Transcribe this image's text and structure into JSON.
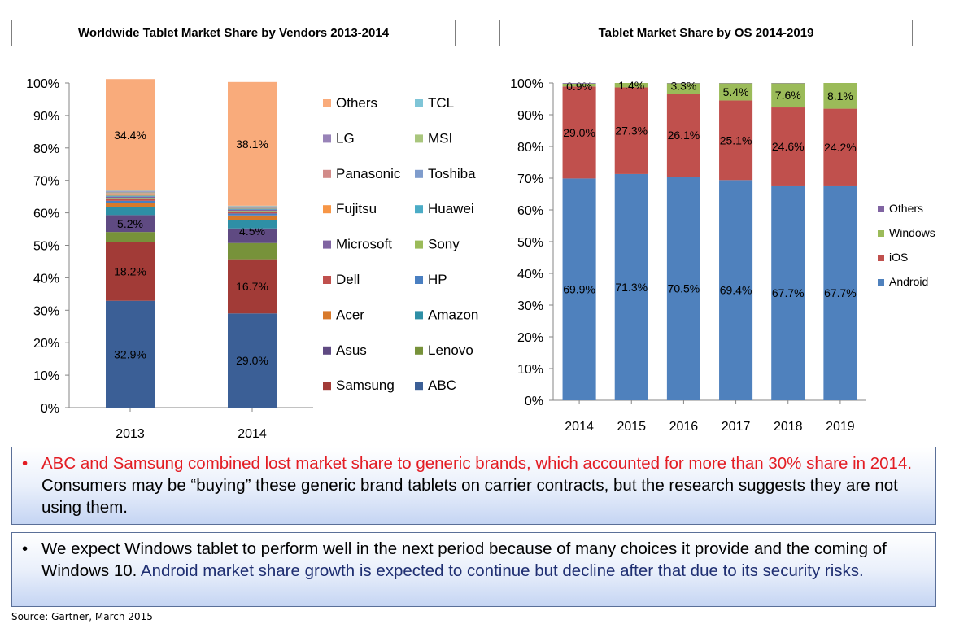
{
  "chart_data": [
    {
      "type": "bar",
      "stacked": true,
      "title": "Worldwide Tablet Market Share by Vendors 2013-2014",
      "categories": [
        "2013",
        "2014"
      ],
      "ylim": [
        0,
        100
      ],
      "yticks": [
        "0%",
        "10%",
        "20%",
        "30%",
        "40%",
        "50%",
        "60%",
        "70%",
        "80%",
        "90%",
        "100%"
      ],
      "grid": false,
      "legend_position": "right",
      "series": [
        {
          "name": "ABC",
          "color": "#3b5f96",
          "values": [
            32.9,
            29.0
          ],
          "labels": [
            "32.9%",
            "29.0%"
          ]
        },
        {
          "name": "Samsung",
          "color": "#a23b37",
          "values": [
            18.2,
            16.7
          ],
          "labels": [
            "18.2%",
            "16.7%"
          ]
        },
        {
          "name": "Lenovo",
          "color": "#77923a",
          "values": [
            3.0,
            5.0
          ],
          "labels": [
            "",
            ""
          ]
        },
        {
          "name": "Asus",
          "color": "#5f4a82",
          "values": [
            5.2,
            4.5
          ],
          "labels": [
            "5.2%",
            "4.5%"
          ]
        },
        {
          "name": "Amazon",
          "color": "#2e8fa6",
          "values": [
            2.5,
            2.6
          ],
          "labels": [
            "",
            ""
          ]
        },
        {
          "name": "Acer",
          "color": "#d8792b",
          "values": [
            1.2,
            1.4
          ],
          "labels": [
            "",
            ""
          ]
        },
        {
          "name": "HP",
          "color": "#4a7fc1",
          "values": [
            0.7,
            0.6
          ],
          "labels": [
            "",
            ""
          ]
        },
        {
          "name": "Dell",
          "color": "#c0504d",
          "values": [
            0.5,
            0.5
          ],
          "labels": [
            "",
            ""
          ]
        },
        {
          "name": "Sony",
          "color": "#9bbb59",
          "values": [
            0.4,
            0.3
          ],
          "labels": [
            "",
            ""
          ]
        },
        {
          "name": "Microsoft",
          "color": "#8064a2",
          "values": [
            0.4,
            0.4
          ],
          "labels": [
            "",
            ""
          ]
        },
        {
          "name": "Huawei",
          "color": "#4bacc6",
          "values": [
            0.3,
            0.3
          ],
          "labels": [
            "",
            ""
          ]
        },
        {
          "name": "Fujitsu",
          "color": "#f79646",
          "values": [
            0.3,
            0.2
          ],
          "labels": [
            "",
            ""
          ]
        },
        {
          "name": "Toshiba",
          "color": "#7f9ccc",
          "values": [
            0.3,
            0.2
          ],
          "labels": [
            "",
            ""
          ]
        },
        {
          "name": "Panasonic",
          "color": "#d28b89",
          "values": [
            0.2,
            0.2
          ],
          "labels": [
            "",
            ""
          ]
        },
        {
          "name": "MSI",
          "color": "#a9c67d",
          "values": [
            0.2,
            0.1
          ],
          "labels": [
            "",
            ""
          ]
        },
        {
          "name": "LG",
          "color": "#9883b8",
          "values": [
            0.3,
            0.1
          ],
          "labels": [
            "",
            ""
          ]
        },
        {
          "name": "TCL",
          "color": "#7fc5d7",
          "values": [
            0.2,
            0.1
          ],
          "labels": [
            "",
            ""
          ]
        },
        {
          "name": "Others",
          "color": "#f9ab7b",
          "values": [
            34.4,
            38.1
          ],
          "labels": [
            "34.4%",
            "38.1%"
          ]
        }
      ],
      "legend_order": [
        "Others",
        "TCL",
        "LG",
        "MSI",
        "Panasonic",
        "Toshiba",
        "Fujitsu",
        "Huawei",
        "Microsoft",
        "Sony",
        "Dell",
        "HP",
        "Acer",
        "Amazon",
        "Asus",
        "Lenovo",
        "Samsung",
        "ABC"
      ]
    },
    {
      "type": "bar",
      "stacked": true,
      "title": "Tablet Market Share by OS 2014-2019",
      "categories": [
        "2014",
        "2015",
        "2016",
        "2017",
        "2018",
        "2019"
      ],
      "ylim": [
        0,
        100
      ],
      "yticks": [
        "0%",
        "10%",
        "20%",
        "30%",
        "40%",
        "50%",
        "60%",
        "70%",
        "80%",
        "90%",
        "100%"
      ],
      "grid": false,
      "legend_position": "right",
      "series": [
        {
          "name": "Android",
          "color": "#4f81bd",
          "values": [
            69.9,
            71.3,
            70.5,
            69.4,
            67.7,
            67.7
          ],
          "labels": [
            "69.9%",
            "71.3%",
            "70.5%",
            "69.4%",
            "67.7%",
            "67.7%"
          ]
        },
        {
          "name": "iOS",
          "color": "#c0504d",
          "values": [
            29.0,
            27.3,
            26.1,
            25.1,
            24.6,
            24.2
          ],
          "labels": [
            "29.0%",
            "27.3%",
            "26.1%",
            "25.1%",
            "24.6%",
            "24.2%"
          ]
        },
        {
          "name": "Windows",
          "color": "#9bbb59",
          "values": [
            0.9,
            1.4,
            3.3,
            5.4,
            7.6,
            8.1
          ],
          "labels": [
            "0.9%",
            "1.4%",
            "3.3%",
            "5.4%",
            "7.6%",
            "8.1%"
          ]
        },
        {
          "name": "Others",
          "color": "#8064a2",
          "values": [
            0.2,
            0.0,
            0.1,
            0.1,
            0.1,
            0.0
          ],
          "labels": [
            "",
            "",
            "",
            "",
            "",
            ""
          ]
        }
      ],
      "legend_order": [
        "Others",
        "Windows",
        "iOS",
        "Android"
      ]
    }
  ],
  "notes": [
    {
      "bullet": "•",
      "highlight": "ABC and Samsung combined lost market share to generic brands, which accounted for more than 30% share in 2014.",
      "rest": " Consumers may be “buying” these generic brand tablets on carrier contracts, but the research suggests they are not using them."
    },
    {
      "bullet": "•",
      "plain": "We expect Windows tablet to perform well in the next period because of many choices it provide and the coming of Windows 10.",
      "highlight": " Android market share growth is expected to continue but decline after that due to its security risks."
    }
  ],
  "source": "Source: Gartner, March 2015",
  "colors": {
    "note_highlight_red": "#e31c23",
    "note_highlight_blue": "#1f2f72"
  }
}
